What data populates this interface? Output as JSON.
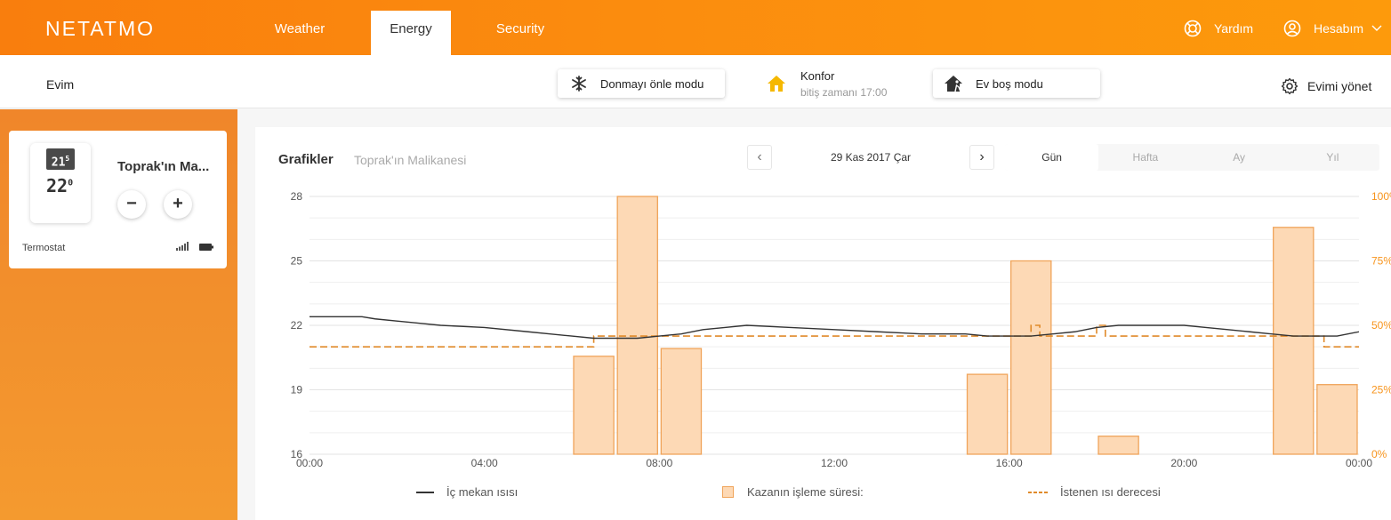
{
  "brand": {
    "logo": "NETATMO"
  },
  "nav": {
    "tabs": [
      {
        "label": "Weather",
        "active": false
      },
      {
        "label": "Energy",
        "active": true
      },
      {
        "label": "Security",
        "active": false
      }
    ],
    "help_label": "Yardım",
    "account_label": "Hesabım"
  },
  "subbar": {
    "home_name": "Evim",
    "frost_mode_label": "Donmayı önle modu",
    "comfort_label": "Konfor",
    "comfort_end": "bitiş zamanı 17:00",
    "away_mode_label": "Ev boş modu",
    "manage_label": "Evimi yönet"
  },
  "thermostat": {
    "setpoint_display": "21.5",
    "setpoint_main": "21",
    "setpoint_sup": "5",
    "current_main": "22",
    "current_sup": "0",
    "room_name": "Toprak'ın Ma...",
    "minus_label": "−",
    "plus_label": "+",
    "device_label": "Termostat"
  },
  "graphs": {
    "title": "Grafikler",
    "subtitle": "Toprak'ın Malikanesi",
    "prev_label": "‹",
    "next_label": "›",
    "date_label": "29 Kas 2017 Çar",
    "periods": [
      {
        "label": "Gün",
        "active": true
      },
      {
        "label": "Hafta",
        "active": false
      },
      {
        "label": "Ay",
        "active": false
      },
      {
        "label": "Yıl",
        "active": false
      }
    ]
  },
  "colors": {
    "accent": "#f7941d",
    "bar_fill": "#fdd9b5",
    "bar_stroke": "#f0a45a",
    "temp_line": "#333333",
    "setpoint_line": "#e08a2a"
  },
  "chart_data": {
    "type": "bar",
    "x_unit": "hours",
    "xlim": [
      0,
      24
    ],
    "ylim_left": [
      16,
      28
    ],
    "ylim_right": [
      0,
      100
    ],
    "y_ticks_left": [
      "16",
      "19",
      "22",
      "25",
      "28"
    ],
    "y_ticks_left_values": [
      16,
      19,
      22,
      25,
      28
    ],
    "y_ticks_right": [
      "0%",
      "25%",
      "50%",
      "75%",
      "100%"
    ],
    "y_ticks_right_values": [
      0,
      25,
      50,
      75,
      100
    ],
    "x_ticks": [
      "00:00",
      "04:00",
      "08:00",
      "12:00",
      "16:00",
      "20:00",
      "00:00"
    ],
    "x_ticks_values": [
      0,
      4,
      8,
      12,
      16,
      20,
      24
    ],
    "boiler_bars": {
      "name": "Kazanın işleme süresi:",
      "start_hour": [
        6,
        7,
        8,
        15,
        16,
        18,
        22,
        23
      ],
      "end_hour": [
        7,
        8,
        9,
        16,
        17,
        19,
        23,
        24
      ],
      "values_percent": [
        38,
        100,
        41,
        31,
        75,
        7,
        88,
        27
      ]
    },
    "series": [
      {
        "name": "İç mekan ısısı",
        "x": [
          0,
          1.2,
          1.5,
          2,
          2.5,
          3,
          4,
          5,
          5.5,
          6,
          6.5,
          7,
          7.5,
          8,
          8.5,
          9,
          9.5,
          10,
          11,
          12,
          13,
          14,
          15,
          15.5,
          16,
          16.5,
          17,
          17.5,
          18,
          18.5,
          19,
          19.5,
          20,
          20.5,
          21,
          21.5,
          22,
          22.5,
          23,
          23.5,
          24
        ],
        "values": [
          22.4,
          22.4,
          22.3,
          22.2,
          22.1,
          22.0,
          21.9,
          21.7,
          21.6,
          21.5,
          21.4,
          21.4,
          21.4,
          21.5,
          21.6,
          21.8,
          21.9,
          22.0,
          21.9,
          21.8,
          21.7,
          21.6,
          21.6,
          21.5,
          21.5,
          21.5,
          21.6,
          21.7,
          21.9,
          22.0,
          22.0,
          22.0,
          22.0,
          21.9,
          21.8,
          21.7,
          21.6,
          21.5,
          21.5,
          21.5,
          21.7
        ]
      },
      {
        "name": "İstenen ısı derecesi",
        "x": [
          0,
          6.5,
          6.5,
          16.5,
          16.5,
          16.7,
          16.7,
          18,
          18,
          18.2,
          18.2,
          23.2,
          23.2,
          24
        ],
        "values": [
          21.0,
          21.0,
          21.5,
          21.5,
          22.0,
          22.0,
          21.5,
          21.5,
          22.0,
          22.0,
          21.5,
          21.5,
          21.0,
          21.0
        ]
      }
    ],
    "legend": [
      "İç mekan ısısı",
      "Kazanın işleme süresi:",
      "İstenen ısı derecesi"
    ],
    "grid": true,
    "legend_position": "bottom"
  }
}
